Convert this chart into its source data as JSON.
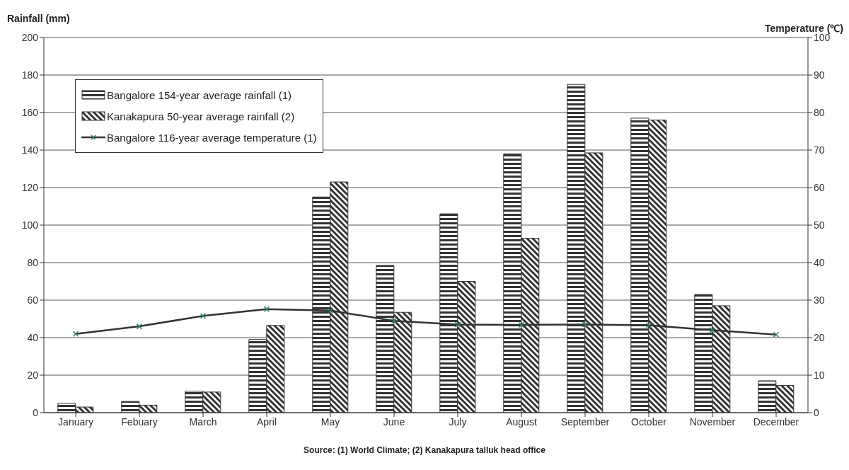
{
  "chart_data": {
    "type": "bar",
    "ylabel": "Rainfall (mm)",
    "y2label": "Temperature (℃)",
    "annotations": [
      "Source: (1) World Climate; (2) Kanakapura talluk head office"
    ],
    "categories": [
      "January",
      "Febuary",
      "March",
      "April",
      "May",
      "June",
      "July",
      "August",
      "September",
      "October",
      "November",
      "December"
    ],
    "series": [
      {
        "name": "Bangalore 154-year average rainfall (1)",
        "color": "#333333",
        "values": [
          5,
          6,
          11.5,
          39,
          115,
          78.5,
          106,
          138,
          175,
          157,
          63,
          17
        ]
      },
      {
        "name": "Kanakapura 50-year average rainfall (2)",
        "color": "#333333",
        "values": [
          3,
          4,
          11,
          46.5,
          123,
          53.5,
          70,
          93,
          138.5,
          156,
          57,
          14.5
        ]
      },
      {
        "name": "Bangalore 116-year average temperature (1)",
        "type": "line",
        "axis": "y2",
        "color": "#333333",
        "marker": "cross",
        "line_style": "solid",
        "values": [
          21,
          23,
          25.8,
          27.6,
          27.2,
          24.5,
          23.5,
          23.4,
          23.5,
          23.3,
          22,
          20.8
        ]
      }
    ],
    "ylim": [
      0,
      200
    ],
    "yticks": [
      0,
      20,
      40,
      60,
      80,
      100,
      120,
      140,
      160,
      180,
      200
    ],
    "y2lim": [
      0,
      100
    ],
    "y2ticks": [
      0,
      10,
      20,
      30,
      40,
      50,
      60,
      70,
      80,
      90,
      100
    ],
    "grid": "y",
    "legend": "top left"
  }
}
